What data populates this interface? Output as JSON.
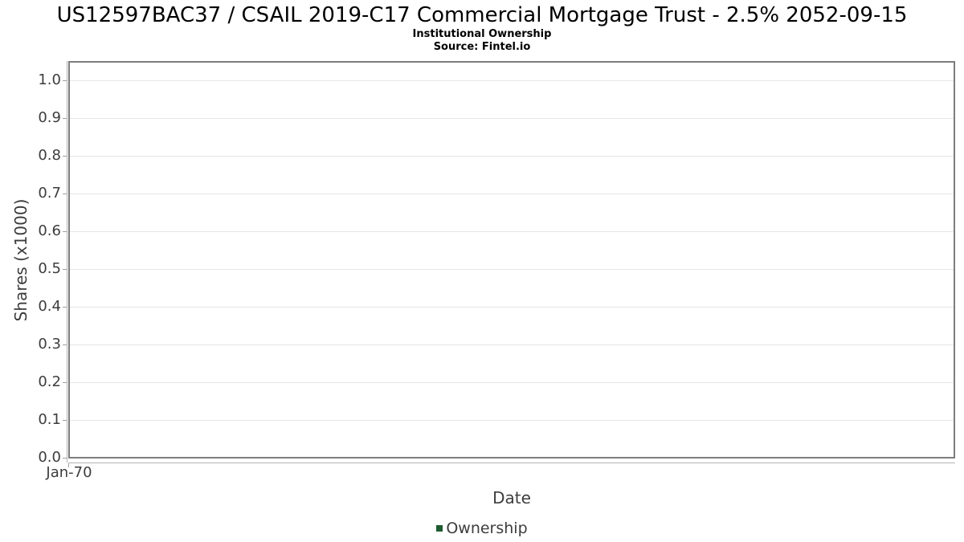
{
  "chart_data": {
    "type": "line",
    "title": "US12597BAC37 / CSAIL 2019-C17 Commercial Mortgage Trust - 2.5% 2052-09-15",
    "subtitle": "Institutional Ownership",
    "source": "Source: Fintel.io",
    "xlabel": "Date",
    "ylabel": "Shares (x1000)",
    "x_ticks": [
      "Jan-70"
    ],
    "y_ticks": [
      "1.0",
      "0.9",
      "0.8",
      "0.7",
      "0.6",
      "0.5",
      "0.4",
      "0.3",
      "0.2",
      "0.1",
      "0.0"
    ],
    "ylim": [
      0.0,
      1.0
    ],
    "grid": true,
    "legend_position": "bottom",
    "series": [
      {
        "name": "Ownership",
        "color": "#1e5c30",
        "x": [],
        "values": []
      }
    ]
  },
  "colors": {
    "background": "#ffffff",
    "plot_border": "#7d7d7d",
    "gridline": "#e6e6e6",
    "axis_line": "#b3b3b3",
    "tick_mark": "#a0a0a0",
    "axis_text": "#3d3d3d",
    "title_text": "#000000",
    "legend_swatch": "#1e5c30"
  }
}
